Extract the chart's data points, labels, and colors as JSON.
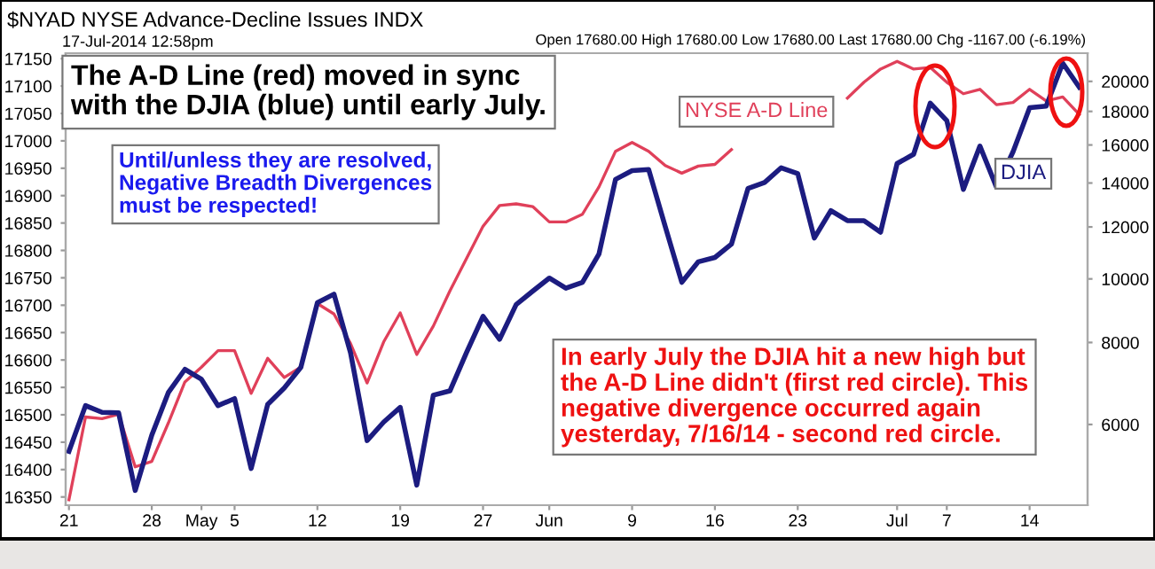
{
  "chart_data": {
    "type": "line",
    "title": "$NYAD NYSE Advance-Decline Issues INDX",
    "subtitle": "17-Jul-2014 12:58pm",
    "annotations": [
      "Open 17680.00 High 17680.00 Low 17680.00 Last 17680.00 Chg -1167.00 (-6.19%)",
      "The A-D Line (red) moved in sync\nwith the DJIA (blue) until early July.",
      "Until/unless they are resolved,\nNegative Breadth Divergences\nmust be respected!",
      "In early July the DJIA hit a new high but\nthe A-D Line didn't (first red circle). This\nnegative divergence occurred again\nyesterday, 7/16/14 - second red circle."
    ],
    "categories": [
      "21",
      null,
      null,
      null,
      null,
      "28",
      null,
      null,
      "May",
      null,
      "5",
      null,
      null,
      null,
      null,
      "12",
      null,
      null,
      null,
      null,
      "19",
      null,
      null,
      null,
      null,
      "27",
      null,
      null,
      null,
      "Jun",
      null,
      null,
      null,
      null,
      "9",
      null,
      null,
      null,
      null,
      "16",
      null,
      null,
      null,
      null,
      "23",
      null,
      null,
      null,
      null,
      null,
      "Jul",
      null,
      null,
      "7",
      null,
      null,
      null,
      null,
      "14",
      null,
      null,
      null
    ],
    "series": [
      {
        "name": "NYSE A-D Line",
        "color": "#e0405a",
        "values": [
          16345,
          16496,
          16493,
          16501,
          16405,
          16415,
          16485,
          16560,
          16587,
          16617,
          16617,
          16539,
          16603,
          16568,
          16587,
          16703,
          16684,
          16630,
          16558,
          16633,
          16686,
          16610,
          16662,
          16726,
          16785,
          16844,
          16882,
          16885,
          16880,
          16852,
          16852,
          16866,
          16916,
          16981,
          16997,
          16981,
          16955,
          16941,
          16954,
          16957,
          16984,
          null,
          null,
          null,
          null,
          null,
          null,
          17078,
          17107,
          17131,
          17145,
          17131,
          17134,
          17107,
          17086,
          17094,
          17066,
          17070,
          17094,
          17073,
          17080,
          17048
        ]
      },
      {
        "name": "DJIA",
        "color": "#1c1c80",
        "axis": "y2",
        "values": [
          5460,
          6410,
          6260,
          6250,
          4760,
          5780,
          6710,
          7280,
          7030,
          6410,
          6570,
          5140,
          6440,
          6820,
          7330,
          9200,
          9480,
          7720,
          5670,
          6050,
          6370,
          4850,
          6650,
          6750,
          7720,
          8770,
          8090,
          9140,
          9580,
          10030,
          9680,
          9880,
          10910,
          14180,
          14620,
          14680,
          12020,
          9880,
          10620,
          10780,
          11300,
          13740,
          14030,
          14770,
          14470,
          11540,
          12710,
          12270,
          12270,
          11780,
          14990,
          15490,
          18530,
          17420,
          13690,
          15940,
          13800,
          15620,
          18230,
          18340,
          21320,
          19590
        ]
      }
    ],
    "ylim": [
      16335,
      17160
    ],
    "yticks": [
      16350,
      16400,
      16450,
      16500,
      16550,
      16600,
      16650,
      16700,
      16750,
      16800,
      16850,
      16900,
      16950,
      17000,
      17050,
      17100,
      17150
    ],
    "y2lim": [
      4520,
      22080
    ],
    "y2ticks": [
      6000,
      8000,
      10000,
      12000,
      14000,
      16000,
      18000,
      20000
    ],
    "log": "y2"
  }
}
